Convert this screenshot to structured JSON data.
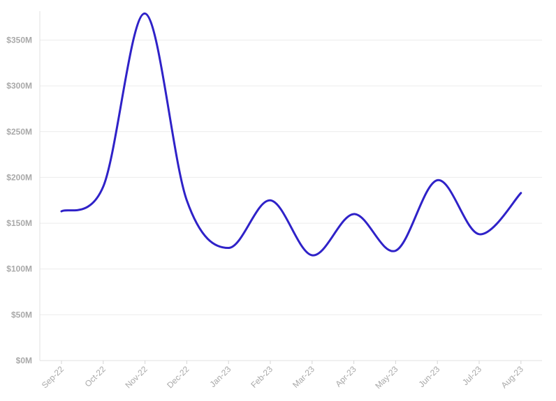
{
  "chart_data": {
    "type": "line",
    "title": "",
    "xlabel": "",
    "ylabel": "",
    "categories": [
      "Sep-22",
      "Oct-22",
      "Nov-22",
      "Dec-22",
      "Jan-23",
      "Feb-23",
      "Mar-23",
      "Apr-23",
      "May-23",
      "Jun-23",
      "Jul-23",
      "Aug-23"
    ],
    "y_ticks": [
      "$0M",
      "$50M",
      "$100M",
      "$150M",
      "$200M",
      "$250M",
      "$300M",
      "$350M"
    ],
    "ylim": [
      0,
      380
    ],
    "grid": true,
    "series": [
      {
        "color": "#2f22c8",
        "values": [
          163,
          190,
          379,
          175,
          123,
          175,
          115,
          160,
          120,
          197,
          138,
          183
        ]
      }
    ]
  }
}
